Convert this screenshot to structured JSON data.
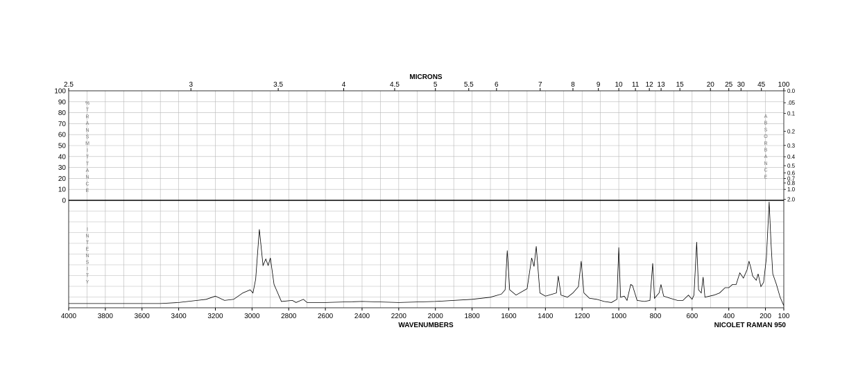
{
  "chart_data": {
    "type": "line",
    "title": "",
    "top_axis_label": "MICRONS",
    "xlabel": "WAVENUMBERS",
    "instrument": "NICOLET RAMAN 950",
    "left_label_upper": "% TRANSMITTANCE",
    "left_label_lower": "INTENSITY",
    "right_label": "ABSORBANCE",
    "xlim": [
      4000,
      100
    ],
    "x_ticks": [
      4000,
      3800,
      3600,
      3400,
      3200,
      3000,
      2800,
      2600,
      2400,
      2200,
      2000,
      1800,
      1600,
      1400,
      1200,
      1000,
      800,
      600,
      400,
      200,
      100
    ],
    "micron_ticks": [
      "2.5",
      "3",
      "3.5",
      "4",
      "4.5",
      "5",
      "5.5",
      "6",
      "7",
      "8",
      "9",
      "10",
      "11",
      "12",
      "13",
      "15",
      "20",
      "25",
      "30",
      "45",
      "100"
    ],
    "transmittance_ticks": [
      100,
      90,
      80,
      70,
      60,
      50,
      40,
      30,
      20,
      10,
      0
    ],
    "absorbance_ticks": [
      "0.0",
      ".05",
      "0.1",
      "0.2",
      "0.3",
      "0.4",
      "0.5",
      "0.6",
      "0.7",
      "0.8",
      "1.0",
      "2.0"
    ],
    "grid": true,
    "y_meaning": "relative Raman intensity (0 = baseline, 1 = panel top)",
    "series": [
      {
        "points": [
          [
            4000,
            0.02
          ],
          [
            3500,
            0.02
          ],
          [
            3400,
            0.03
          ],
          [
            3300,
            0.05
          ],
          [
            3250,
            0.06
          ],
          [
            3200,
            0.09
          ],
          [
            3150,
            0.05
          ],
          [
            3100,
            0.06
          ],
          [
            3050,
            0.12
          ],
          [
            3010,
            0.15
          ],
          [
            2995,
            0.12
          ],
          [
            2980,
            0.25
          ],
          [
            2960,
            0.72
          ],
          [
            2940,
            0.38
          ],
          [
            2925,
            0.44
          ],
          [
            2912,
            0.38
          ],
          [
            2900,
            0.45
          ],
          [
            2880,
            0.2
          ],
          [
            2860,
            0.12
          ],
          [
            2840,
            0.04
          ],
          [
            2780,
            0.05
          ],
          [
            2760,
            0.03
          ],
          [
            2720,
            0.06
          ],
          [
            2700,
            0.03
          ],
          [
            2600,
            0.03
          ],
          [
            2400,
            0.04
          ],
          [
            2200,
            0.03
          ],
          [
            2000,
            0.04
          ],
          [
            1800,
            0.06
          ],
          [
            1700,
            0.08
          ],
          [
            1640,
            0.11
          ],
          [
            1620,
            0.15
          ],
          [
            1608,
            0.52
          ],
          [
            1595,
            0.15
          ],
          [
            1560,
            0.1
          ],
          [
            1500,
            0.16
          ],
          [
            1475,
            0.45
          ],
          [
            1462,
            0.37
          ],
          [
            1450,
            0.56
          ],
          [
            1430,
            0.12
          ],
          [
            1400,
            0.09
          ],
          [
            1380,
            0.1
          ],
          [
            1340,
            0.12
          ],
          [
            1330,
            0.28
          ],
          [
            1315,
            0.1
          ],
          [
            1280,
            0.08
          ],
          [
            1250,
            0.12
          ],
          [
            1220,
            0.18
          ],
          [
            1205,
            0.42
          ],
          [
            1190,
            0.12
          ],
          [
            1160,
            0.07
          ],
          [
            1120,
            0.06
          ],
          [
            1080,
            0.04
          ],
          [
            1040,
            0.03
          ],
          [
            1010,
            0.06
          ],
          [
            1000,
            0.55
          ],
          [
            990,
            0.08
          ],
          [
            970,
            0.09
          ],
          [
            955,
            0.05
          ],
          [
            935,
            0.2
          ],
          [
            925,
            0.19
          ],
          [
            900,
            0.05
          ],
          [
            860,
            0.04
          ],
          [
            830,
            0.05
          ],
          [
            815,
            0.4
          ],
          [
            805,
            0.07
          ],
          [
            780,
            0.12
          ],
          [
            770,
            0.2
          ],
          [
            755,
            0.09
          ],
          [
            720,
            0.07
          ],
          [
            680,
            0.05
          ],
          [
            650,
            0.05
          ],
          [
            620,
            0.1
          ],
          [
            600,
            0.06
          ],
          [
            590,
            0.1
          ],
          [
            575,
            0.6
          ],
          [
            565,
            0.15
          ],
          [
            550,
            0.12
          ],
          [
            540,
            0.27
          ],
          [
            530,
            0.08
          ],
          [
            480,
            0.1
          ],
          [
            450,
            0.12
          ],
          [
            420,
            0.17
          ],
          [
            400,
            0.17
          ],
          [
            380,
            0.2
          ],
          [
            360,
            0.2
          ],
          [
            340,
            0.31
          ],
          [
            320,
            0.26
          ],
          [
            300,
            0.34
          ],
          [
            290,
            0.42
          ],
          [
            280,
            0.36
          ],
          [
            270,
            0.28
          ],
          [
            250,
            0.24
          ],
          [
            240,
            0.3
          ],
          [
            225,
            0.18
          ],
          [
            210,
            0.22
          ],
          [
            195,
            0.45
          ],
          [
            180,
            0.98
          ],
          [
            170,
            0.6
          ],
          [
            160,
            0.3
          ],
          [
            140,
            0.2
          ],
          [
            120,
            0.08
          ],
          [
            100,
            0.0
          ]
        ]
      }
    ]
  }
}
